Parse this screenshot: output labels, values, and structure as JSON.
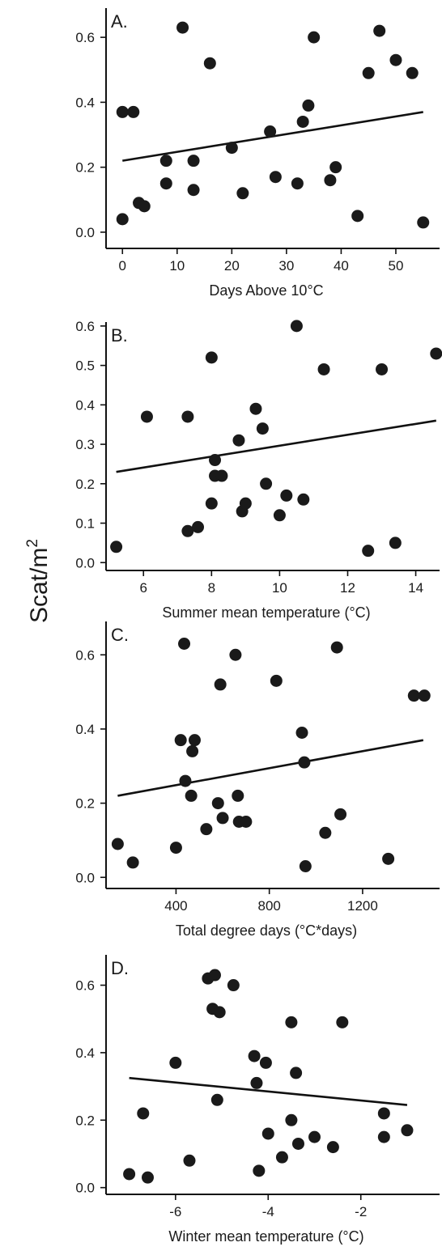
{
  "ylabel": "Scat/m",
  "ylabel_sup": "2",
  "chart_data": [
    {
      "type": "scatter",
      "panel_label": "A.",
      "xlabel": "Days Above 10°C",
      "xlim": [
        -3,
        58
      ],
      "ylim": [
        -0.05,
        0.69
      ],
      "xticks": [
        0,
        10,
        20,
        30,
        40,
        50
      ],
      "yticks": [
        0.0,
        0.2,
        0.4,
        0.6
      ],
      "ytick_labels": [
        "0.0",
        "0.2",
        "0.4",
        "0.6"
      ],
      "grid": false,
      "trendline": {
        "x": [
          0,
          55
        ],
        "y": [
          0.22,
          0.37
        ]
      },
      "points": [
        [
          0,
          0.04
        ],
        [
          0,
          0.37
        ],
        [
          2,
          0.37
        ],
        [
          3,
          0.09
        ],
        [
          4,
          0.08
        ],
        [
          8,
          0.22
        ],
        [
          8,
          0.15
        ],
        [
          11,
          0.63
        ],
        [
          13,
          0.22
        ],
        [
          13,
          0.13
        ],
        [
          16,
          0.52
        ],
        [
          20,
          0.26
        ],
        [
          22,
          0.12
        ],
        [
          27,
          0.31
        ],
        [
          28,
          0.17
        ],
        [
          32,
          0.15
        ],
        [
          33,
          0.34
        ],
        [
          34,
          0.39
        ],
        [
          35,
          0.6
        ],
        [
          38,
          0.16
        ],
        [
          39,
          0.2
        ],
        [
          43,
          0.05
        ],
        [
          45,
          0.49
        ],
        [
          47,
          0.62
        ],
        [
          50,
          0.53
        ],
        [
          53,
          0.49
        ],
        [
          55,
          0.03
        ]
      ]
    },
    {
      "type": "scatter",
      "panel_label": "B.",
      "xlabel": "Summer mean temperature (°C)",
      "xlim": [
        4.9,
        14.7
      ],
      "ylim": [
        -0.02,
        0.61
      ],
      "xticks": [
        6,
        8,
        10,
        12,
        14
      ],
      "yticks": [
        0.0,
        0.1,
        0.2,
        0.3,
        0.4,
        0.5,
        0.6
      ],
      "ytick_labels": [
        "0.0",
        "0.1",
        "0.2",
        "0.3",
        "0.4",
        "0.5",
        "0.6"
      ],
      "grid": false,
      "trendline": {
        "x": [
          5.2,
          14.6
        ],
        "y": [
          0.23,
          0.36
        ]
      },
      "points": [
        [
          5.2,
          0.04
        ],
        [
          6.1,
          0.37
        ],
        [
          7.3,
          0.37
        ],
        [
          7.3,
          0.08
        ],
        [
          7.6,
          0.09
        ],
        [
          8.0,
          0.52
        ],
        [
          8.1,
          0.26
        ],
        [
          8.1,
          0.22
        ],
        [
          8.0,
          0.15
        ],
        [
          8.3,
          0.22
        ],
        [
          8.8,
          0.31
        ],
        [
          8.9,
          0.13
        ],
        [
          9.0,
          0.15
        ],
        [
          9.3,
          0.39
        ],
        [
          9.5,
          0.34
        ],
        [
          9.6,
          0.2
        ],
        [
          10.0,
          0.12
        ],
        [
          10.2,
          0.17
        ],
        [
          10.5,
          0.6
        ],
        [
          10.7,
          0.16
        ],
        [
          11.3,
          0.49
        ],
        [
          12.6,
          0.03
        ],
        [
          13.0,
          0.49
        ],
        [
          13.4,
          0.05
        ],
        [
          14.6,
          0.53
        ]
      ]
    },
    {
      "type": "scatter",
      "panel_label": "C.",
      "xlabel": "Total degree days (°C*days)",
      "xlim": [
        100,
        1530
      ],
      "ylim": [
        -0.03,
        0.69
      ],
      "xticks": [
        400,
        800,
        1200
      ],
      "yticks": [
        0.0,
        0.2,
        0.4,
        0.6
      ],
      "ytick_labels": [
        "0.0",
        "0.2",
        "0.4",
        "0.6"
      ],
      "grid": false,
      "trendline": {
        "x": [
          150,
          1460
        ],
        "y": [
          0.22,
          0.37
        ]
      },
      "points": [
        [
          150,
          0.09
        ],
        [
          215,
          0.04
        ],
        [
          400,
          0.08
        ],
        [
          420,
          0.37
        ],
        [
          435,
          0.63
        ],
        [
          440,
          0.26
        ],
        [
          465,
          0.22
        ],
        [
          470,
          0.34
        ],
        [
          480,
          0.37
        ],
        [
          530,
          0.13
        ],
        [
          580,
          0.2
        ],
        [
          590,
          0.52
        ],
        [
          600,
          0.16
        ],
        [
          655,
          0.6
        ],
        [
          665,
          0.22
        ],
        [
          670,
          0.15
        ],
        [
          700,
          0.15
        ],
        [
          830,
          0.53
        ],
        [
          940,
          0.39
        ],
        [
          950,
          0.31
        ],
        [
          955,
          0.03
        ],
        [
          1040,
          0.12
        ],
        [
          1090,
          0.62
        ],
        [
          1105,
          0.17
        ],
        [
          1310,
          0.05
        ],
        [
          1420,
          0.49
        ],
        [
          1465,
          0.49
        ]
      ]
    },
    {
      "type": "scatter",
      "panel_label": "D.",
      "xlabel": "Winter mean temperature (°C)",
      "xlim": [
        -7.5,
        -0.3
      ],
      "ylim": [
        -0.02,
        0.69
      ],
      "xticks": [
        -6,
        -4,
        -2
      ],
      "yticks": [
        0.0,
        0.2,
        0.4,
        0.6
      ],
      "ytick_labels": [
        "0.0",
        "0.2",
        "0.4",
        "0.6"
      ],
      "grid": false,
      "trendline": {
        "x": [
          -7.0,
          -1.0
        ],
        "y": [
          0.325,
          0.245
        ]
      },
      "points": [
        [
          -7.0,
          0.04
        ],
        [
          -6.7,
          0.22
        ],
        [
          -6.6,
          0.03
        ],
        [
          -6.0,
          0.37
        ],
        [
          -5.7,
          0.08
        ],
        [
          -5.3,
          0.62
        ],
        [
          -5.2,
          0.53
        ],
        [
          -5.15,
          0.63
        ],
        [
          -5.1,
          0.26
        ],
        [
          -5.05,
          0.52
        ],
        [
          -4.75,
          0.6
        ],
        [
          -4.3,
          0.39
        ],
        [
          -4.25,
          0.31
        ],
        [
          -4.2,
          0.05
        ],
        [
          -4.05,
          0.37
        ],
        [
          -4.0,
          0.16
        ],
        [
          -3.7,
          0.09
        ],
        [
          -3.5,
          0.49
        ],
        [
          -3.5,
          0.2
        ],
        [
          -3.4,
          0.34
        ],
        [
          -3.35,
          0.13
        ],
        [
          -3.0,
          0.15
        ],
        [
          -2.6,
          0.12
        ],
        [
          -2.4,
          0.49
        ],
        [
          -1.5,
          0.22
        ],
        [
          -1.5,
          0.15
        ],
        [
          -1.0,
          0.17
        ]
      ]
    }
  ]
}
